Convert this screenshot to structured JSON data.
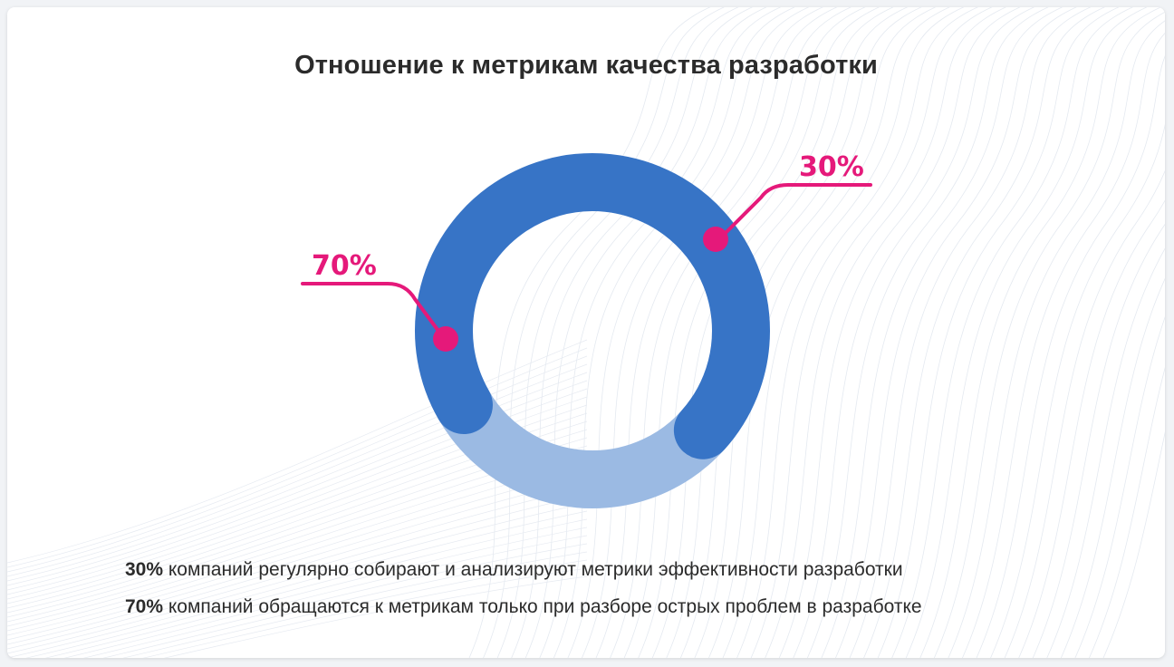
{
  "title": "Отношение к метрикам качества разработки",
  "colors": {
    "primary": "#3774c6",
    "secondary": "#9bbae3",
    "accent": "#e5197a",
    "text": "#2b2b2b"
  },
  "chart_data": {
    "type": "pie",
    "variant": "donut",
    "title": "Отношение к метрикам качества разработки",
    "slices": [
      {
        "label": "70%",
        "value": 70,
        "color": "#3774c6"
      },
      {
        "label": "30%",
        "value": 30,
        "color": "#9bbae3"
      }
    ],
    "data_labels": [
      "70%",
      "30%"
    ]
  },
  "legend": [
    {
      "percent": "30%",
      "text": "компаний регулярно собирают и анализируют метрики эффективности разработки"
    },
    {
      "percent": "70%",
      "text": "компаний обращаются к метрикам только при разборе острых проблем в разработке"
    }
  ]
}
